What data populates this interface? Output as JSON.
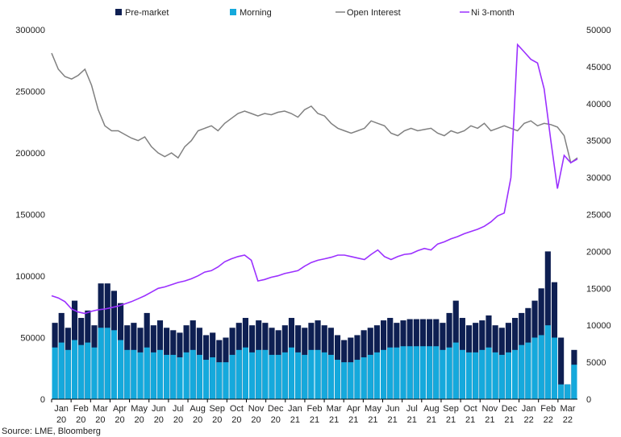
{
  "chart_data": {
    "type": "bar",
    "legend_position": "top",
    "grid": false,
    "source": "Source: LME, Bloomberg",
    "y_left": {
      "min": 0,
      "max": 300000,
      "ticks": [
        "0",
        "50000",
        "100000",
        "150000",
        "200000",
        "250000",
        "300000"
      ]
    },
    "y_right": {
      "min": 0,
      "max": 50000,
      "ticks": [
        "0",
        "5000",
        "10000",
        "15000",
        "20000",
        "25000",
        "30000",
        "35000",
        "40000",
        "45000",
        "50000"
      ]
    },
    "x_ticks": [
      {
        "m": "Jan",
        "y": "20"
      },
      {
        "m": "Feb",
        "y": "20"
      },
      {
        "m": "Mar",
        "y": "20"
      },
      {
        "m": "Apr",
        "y": "20"
      },
      {
        "m": "May",
        "y": "20"
      },
      {
        "m": "Jun",
        "y": "20"
      },
      {
        "m": "Jul",
        "y": "20"
      },
      {
        "m": "Aug",
        "y": "20"
      },
      {
        "m": "Sep",
        "y": "20"
      },
      {
        "m": "Oct",
        "y": "20"
      },
      {
        "m": "Nov",
        "y": "20"
      },
      {
        "m": "Dec",
        "y": "20"
      },
      {
        "m": "Jan",
        "y": "21"
      },
      {
        "m": "Feb",
        "y": "21"
      },
      {
        "m": "Mar",
        "y": "21"
      },
      {
        "m": "Apr",
        "y": "21"
      },
      {
        "m": "May",
        "y": "21"
      },
      {
        "m": "Jun",
        "y": "21"
      },
      {
        "m": "Jul",
        "y": "21"
      },
      {
        "m": "Aug",
        "y": "21"
      },
      {
        "m": "Sep",
        "y": "21"
      },
      {
        "m": "Oct",
        "y": "21"
      },
      {
        "m": "Nov",
        "y": "21"
      },
      {
        "m": "Dec",
        "y": "21"
      },
      {
        "m": "Jan",
        "y": "22"
      },
      {
        "m": "Feb",
        "y": "22"
      },
      {
        "m": "Mar",
        "y": "22"
      }
    ],
    "series": [
      {
        "name": "Pre-market",
        "type": "bar",
        "axis": "left",
        "color": "#0e1f52",
        "values": [
          62000,
          70000,
          58000,
          80000,
          66000,
          72000,
          60000,
          94000,
          94000,
          88000,
          78000,
          60000,
          62000,
          58000,
          70000,
          60000,
          64000,
          58000,
          56000,
          54000,
          60000,
          64000,
          58000,
          52000,
          54000,
          48000,
          50000,
          58000,
          62000,
          66000,
          60000,
          64000,
          62000,
          58000,
          56000,
          60000,
          66000,
          60000,
          58000,
          62000,
          64000,
          60000,
          58000,
          52000,
          48000,
          50000,
          52000,
          56000,
          58000,
          60000,
          64000,
          66000,
          62000,
          64000,
          65000,
          65000,
          65000,
          65000,
          65000,
          62000,
          70000,
          80000,
          66000,
          60000,
          62000,
          64000,
          68000,
          60000,
          58000,
          62000,
          66000,
          70000,
          74000,
          80000,
          90000,
          120000,
          95000,
          50000,
          12000,
          40000
        ]
      },
      {
        "name": "Morning",
        "type": "bar",
        "axis": "left",
        "color": "#15a9dc",
        "values": [
          42000,
          46000,
          40000,
          48000,
          44000,
          46000,
          42000,
          58000,
          58000,
          56000,
          48000,
          40000,
          40000,
          38000,
          42000,
          38000,
          40000,
          36000,
          36000,
          34000,
          38000,
          40000,
          36000,
          32000,
          34000,
          30000,
          30000,
          36000,
          40000,
          42000,
          38000,
          40000,
          40000,
          36000,
          36000,
          38000,
          42000,
          38000,
          36000,
          40000,
          40000,
          38000,
          36000,
          32000,
          30000,
          30000,
          32000,
          34000,
          36000,
          38000,
          40000,
          42000,
          42000,
          43000,
          43000,
          43000,
          43000,
          43000,
          43000,
          40000,
          42000,
          46000,
          40000,
          38000,
          38000,
          40000,
          42000,
          38000,
          36000,
          38000,
          40000,
          44000,
          46000,
          50000,
          52000,
          60000,
          50000,
          12000,
          12000,
          28000
        ]
      },
      {
        "name": "Open Interest",
        "type": "line",
        "axis": "left",
        "color": "#808080",
        "values": [
          281000,
          268000,
          262000,
          260000,
          263000,
          268000,
          255000,
          235000,
          222000,
          218000,
          218000,
          215000,
          212000,
          210000,
          213000,
          205000,
          200000,
          197000,
          200000,
          196000,
          205000,
          210000,
          218000,
          220000,
          222000,
          218000,
          224000,
          228000,
          232000,
          234000,
          232000,
          230000,
          232000,
          231000,
          233000,
          234000,
          232000,
          229000,
          235000,
          238000,
          232000,
          230000,
          224000,
          220000,
          218000,
          216000,
          218000,
          220000,
          226000,
          224000,
          222000,
          216000,
          214000,
          218000,
          220000,
          218000,
          219000,
          220000,
          216000,
          214000,
          218000,
          216000,
          218000,
          222000,
          220000,
          224000,
          218000,
          220000,
          222000,
          220000,
          218000,
          224000,
          226000,
          222000,
          224000,
          223000,
          221000,
          214000,
          192000,
          196000
        ]
      },
      {
        "name": "Ni 3-month",
        "type": "line",
        "axis": "right",
        "color": "#9b30ff",
        "values": [
          14000,
          13700,
          13200,
          12200,
          11800,
          11600,
          11900,
          12100,
          12200,
          12400,
          12600,
          12900,
          13200,
          13600,
          14000,
          14500,
          15000,
          15200,
          15500,
          15800,
          16000,
          16300,
          16700,
          17200,
          17400,
          17900,
          18600,
          19000,
          19300,
          19500,
          18800,
          16000,
          16200,
          16500,
          16700,
          17000,
          17200,
          17400,
          18000,
          18500,
          18800,
          19000,
          19200,
          19500,
          19500,
          19300,
          19100,
          18900,
          19600,
          20200,
          19300,
          18900,
          19300,
          19600,
          19700,
          20100,
          20400,
          20200,
          21000,
          21300,
          21700,
          22000,
          22400,
          22700,
          23000,
          23400,
          24000,
          24800,
          25200,
          30000,
          48000,
          47000,
          46000,
          45500,
          42000,
          35000,
          28500,
          33000,
          32000,
          32500
        ]
      }
    ]
  }
}
